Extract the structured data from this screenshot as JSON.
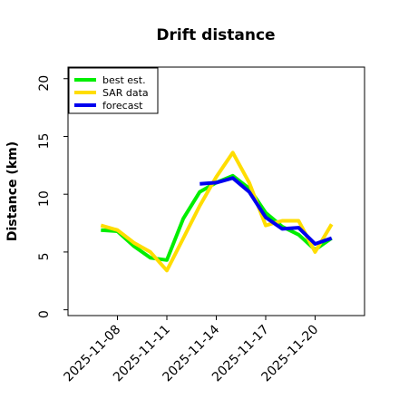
{
  "chart_data": {
    "type": "line",
    "title": "Drift distance",
    "xlabel": "",
    "ylabel": "Distance (km)",
    "ylim": [
      -0.5,
      21
    ],
    "xlim": [
      "2025-11-05",
      "2025-11-23"
    ],
    "y_ticks": [
      0,
      5,
      10,
      15,
      20
    ],
    "x_ticks": [
      "2025-11-08",
      "2025-11-11",
      "2025-11-14",
      "2025-11-17",
      "2025-11-20"
    ],
    "grid": false,
    "legend_position": "top-left",
    "series": [
      {
        "name": "best est.",
        "color": "#00ee00",
        "x": [
          "2025-11-07",
          "2025-11-08",
          "2025-11-09",
          "2025-11-10",
          "2025-11-11",
          "2025-11-12",
          "2025-11-13",
          "2025-11-14",
          "2025-11-15",
          "2025-11-16",
          "2025-11-17",
          "2025-11-18",
          "2025-11-19",
          "2025-11-20",
          "2025-11-21"
        ],
        "y": [
          6.9,
          6.8,
          5.5,
          4.5,
          4.3,
          7.9,
          10.2,
          11.0,
          11.6,
          10.5,
          8.4,
          7.2,
          6.5,
          5.2,
          6.2
        ]
      },
      {
        "name": "SAR data",
        "color": "#ffdd00",
        "x": [
          "2025-11-07",
          "2025-11-08",
          "2025-11-09",
          "2025-11-10",
          "2025-11-11",
          "2025-11-12",
          "2025-11-13",
          "2025-11-14",
          "2025-11-15",
          "2025-11-16",
          "2025-11-17",
          "2025-11-18",
          "2025-11-19",
          "2025-11-20",
          "2025-11-21"
        ],
        "y": [
          7.3,
          6.9,
          5.8,
          5.0,
          3.4,
          6.2,
          9.0,
          11.5,
          13.6,
          11.0,
          7.3,
          7.7,
          7.7,
          5.0,
          7.4
        ]
      },
      {
        "name": "forecast",
        "color": "#0000ee",
        "x": [
          "2025-11-13",
          "2025-11-14",
          "2025-11-15",
          "2025-11-16",
          "2025-11-17",
          "2025-11-18",
          "2025-11-19",
          "2025-11-20",
          "2025-11-21"
        ],
        "y": [
          10.9,
          11.0,
          11.4,
          10.2,
          8.0,
          7.0,
          7.1,
          5.7,
          6.2
        ]
      }
    ]
  }
}
